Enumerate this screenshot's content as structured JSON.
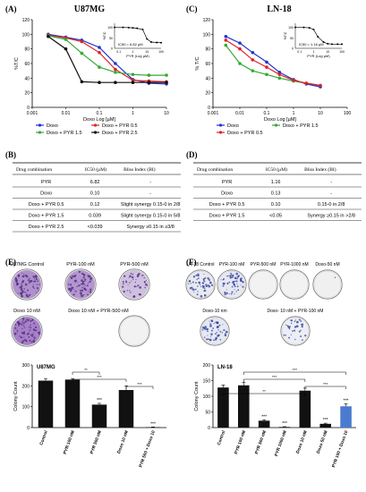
{
  "panels": {
    "A": {
      "letter": "(A)",
      "title": "U87MG"
    },
    "B": {
      "letter": "(B)"
    },
    "C": {
      "letter": "(C)",
      "title": "LN-18"
    },
    "D": {
      "letter": "(D)"
    },
    "E": {
      "letter": "(E)"
    },
    "F": {
      "letter": "(F)"
    }
  },
  "chart_data": [
    {
      "id": "A",
      "type": "line",
      "title": "U87MG",
      "xlabel": "Doxo Log [µM]",
      "ylabel": "%T/C",
      "xscale": "log",
      "xlim": [
        0.001,
        10
      ],
      "ylim": [
        0,
        120
      ],
      "xticks": [
        "0.001",
        "0.01",
        "0.1",
        "1",
        "10"
      ],
      "yticks": [
        "0",
        "20",
        "40",
        "60",
        "80",
        "100",
        "120"
      ],
      "legend": [
        "Doxo",
        "Doxo + PYR 0.5",
        "Doxo + PYR 1.5",
        "Doxo + PYR 2.5"
      ],
      "series": [
        {
          "name": "Doxo",
          "color": "#2233cc",
          "x": [
            0.003,
            0.01,
            0.03,
            0.1,
            0.3,
            1,
            3,
            10
          ],
          "y": [
            100,
            96,
            92,
            82,
            60,
            38,
            33,
            32
          ]
        },
        {
          "name": "Doxo + PYR 0.5",
          "color": "#dd2222",
          "x": [
            0.003,
            0.01,
            0.03,
            0.1,
            0.3,
            1,
            3,
            10
          ],
          "y": [
            99,
            95,
            90,
            75,
            52,
            37,
            36,
            35
          ]
        },
        {
          "name": "Doxo + PYR 1.5",
          "color": "#33aa33",
          "x": [
            0.003,
            0.01,
            0.03,
            0.1,
            0.3,
            1,
            3,
            10
          ],
          "y": [
            98,
            93,
            74,
            55,
            48,
            45,
            44,
            44
          ]
        },
        {
          "name": "Doxo + PYR 2.5",
          "color": "#111111",
          "x": [
            0.003,
            0.01,
            0.03,
            0.1,
            0.3,
            1,
            3,
            10
          ],
          "y": [
            97,
            80,
            35,
            34,
            34,
            34,
            34,
            34
          ]
        }
      ],
      "inset": {
        "ylabel": "%T/C",
        "xlabel": "PYR (Log µM)",
        "annotation": "IC50 = 6.82 µM",
        "xticks": [
          "0.1",
          "1",
          "10",
          "100"
        ],
        "yticks": [
          "0",
          "50",
          "100"
        ],
        "x": [
          0.05,
          0.2,
          0.5,
          1,
          2,
          5,
          10,
          20,
          50,
          100
        ],
        "y": [
          100,
          100,
          99,
          98,
          96,
          90,
          45,
          30,
          28,
          27
        ]
      }
    },
    {
      "id": "C",
      "type": "line",
      "title": "LN-18",
      "xlabel": "Doxo Log [µM]",
      "ylabel": "% T/C",
      "xscale": "log",
      "xlim": [
        0.001,
        100
      ],
      "ylim": [
        0,
        120
      ],
      "xticks": [
        "0.001",
        "0.01",
        "0.1",
        "1",
        "10",
        "100"
      ],
      "yticks": [
        "0",
        "20",
        "40",
        "60",
        "80",
        "100",
        "120"
      ],
      "legend": [
        "Doxo",
        "Doxo + PYR 1.5",
        "Doxo + PYR 0.5"
      ],
      "series": [
        {
          "name": "Doxo",
          "color": "#2233cc",
          "x": [
            0.003,
            0.01,
            0.03,
            0.1,
            0.3,
            1,
            3,
            10
          ],
          "y": [
            97,
            88,
            75,
            62,
            48,
            38,
            32,
            28
          ]
        },
        {
          "name": "Doxo + PYR 1.5",
          "color": "#33aa33",
          "x": [
            0.003,
            0.01,
            0.03,
            0.1,
            0.3,
            1,
            3,
            10
          ],
          "y": [
            85,
            60,
            50,
            45,
            40,
            36,
            33,
            30
          ]
        },
        {
          "name": "Doxo + PYR 0.5",
          "color": "#dd2222",
          "x": [
            0.003,
            0.01,
            0.03,
            0.1,
            0.3,
            1,
            3,
            10
          ],
          "y": [
            92,
            80,
            65,
            55,
            45,
            37,
            33,
            30
          ]
        }
      ],
      "inset": {
        "ylabel": "%T/C",
        "xlabel": "PYR (Log µM)",
        "annotation": "IC50 = 1.16 µM",
        "xticks": [
          "0.1",
          "1",
          "10",
          "100"
        ],
        "yticks": [
          "0",
          "50",
          "100"
        ],
        "x": [
          0.05,
          0.2,
          0.5,
          1,
          2,
          5,
          10,
          20,
          50,
          100
        ],
        "y": [
          100,
          100,
          98,
          90,
          55,
          30,
          22,
          20,
          20,
          20
        ]
      }
    },
    {
      "id": "E",
      "type": "bar",
      "title": "U87MG",
      "ylabel": "Colony Count",
      "ylim": [
        0,
        300
      ],
      "yticks": [
        "0",
        "100",
        "200",
        "300"
      ],
      "categories": [
        "Control",
        "PYR-100 nM",
        "PYR 500 nM",
        "Doxo 10 nM",
        "PYR 500 + Doxo 10"
      ],
      "values": [
        225,
        230,
        110,
        180,
        2
      ],
      "colors": [
        "#111111",
        "#111111",
        "#111111",
        "#111111",
        "#111111"
      ],
      "errors": [
        10,
        5,
        6,
        20,
        1
      ],
      "stars": [
        "",
        "",
        "***",
        "",
        "***"
      ],
      "brackets": [
        {
          "from": 1,
          "to": 2,
          "label": "**"
        },
        {
          "from": 1,
          "to": 3,
          "label": "***"
        },
        {
          "from": 3,
          "to": 4,
          "label": "***"
        }
      ]
    },
    {
      "id": "F",
      "type": "bar",
      "title": "LN-18",
      "ylabel": "Colony Count",
      "ylim": [
        0,
        200
      ],
      "yticks": [
        "0",
        "50",
        "100",
        "150",
        "200"
      ],
      "categories": [
        "Control",
        "PYR 100 nM",
        "PYR 500 nM",
        "PYR 1000 nM",
        "Doxo 10 nM",
        "Doxo 50 nM",
        "PYR 100 + Doxo 10"
      ],
      "values": [
        128,
        135,
        22,
        2,
        118,
        12,
        68
      ],
      "colors": [
        "#111111",
        "#111111",
        "#111111",
        "#111111",
        "#111111",
        "#111111",
        "#4a7bd0"
      ],
      "errors": [
        8,
        10,
        3,
        1,
        8,
        2,
        8
      ],
      "stars": [
        "",
        "",
        "***",
        "***",
        "",
        "***",
        "***"
      ],
      "brackets": [
        {
          "from": 1,
          "to": 6,
          "label": "***"
        },
        {
          "from": 1,
          "to": 4,
          "label": "***"
        },
        {
          "from": 4,
          "to": 6,
          "label": "***"
        },
        {
          "from": 0,
          "to": 4,
          "label": "**"
        }
      ]
    }
  ],
  "tables": {
    "B": {
      "headers": [
        "Drug combination",
        "IC50 (µM)",
        "Bliss Index (BI)"
      ],
      "rows": [
        [
          "PYR",
          "6.82",
          "-"
        ],
        [
          "Doxo",
          "0.10",
          "-"
        ],
        [
          "Doxo + PYR 0.5",
          "0.12",
          "Slight synergy 0.15-0 in 2/8"
        ],
        [
          "Doxo + PYR 1.5",
          "0.039",
          "Slight synergy 0.15-0 in 5/8"
        ],
        [
          "Doxo + PYR 2.5",
          "<0.039",
          "Synergy ≥0.15 in ≥3/8"
        ]
      ]
    },
    "D": {
      "headers": [
        "Drug combination",
        "IC50 (µM)",
        "Bliss Index (BI)"
      ],
      "rows": [
        [
          "PYR",
          "1.16",
          "-"
        ],
        [
          "Doxo",
          "0.13",
          "-"
        ],
        [
          "Doxo + PYR 0.5",
          "0.10",
          "0.15-0 in 2/8"
        ],
        [
          "Doxo + PYR 1.5",
          "<0.05",
          "Synergy ≥0.15 in >2/8"
        ]
      ]
    }
  },
  "plates": {
    "E": {
      "labels": [
        "U87MG Control",
        "PYR-100 nM",
        "PYR-500 nM",
        "Doxo 10 nM",
        "Doxo 10 nM + PYR-500 nM"
      ],
      "density": [
        0.9,
        0.85,
        0.6,
        0.95,
        0.0
      ],
      "tint": [
        "#b090cc",
        "#b595cf",
        "#d0c0e0",
        "#a880c8",
        "#f2f2f2"
      ]
    },
    "F": {
      "labels": [
        "LN-18 Control",
        "PYR-100 nM",
        "PYR-500 nM",
        "PYR-1000 nM",
        "Doxo-50 nM",
        "Doxo-10 nm",
        "Doxo- 10 nM + PYR-100 nM"
      ],
      "density": [
        0.7,
        0.75,
        0.0,
        0.0,
        0.02,
        0.65,
        0.45
      ],
      "tint": [
        "#e8eaf0",
        "#e6e8f2",
        "#f2f2f2",
        "#f2f2f2",
        "#f0f0f0",
        "#e6e8f2",
        "#eceef4"
      ]
    }
  }
}
